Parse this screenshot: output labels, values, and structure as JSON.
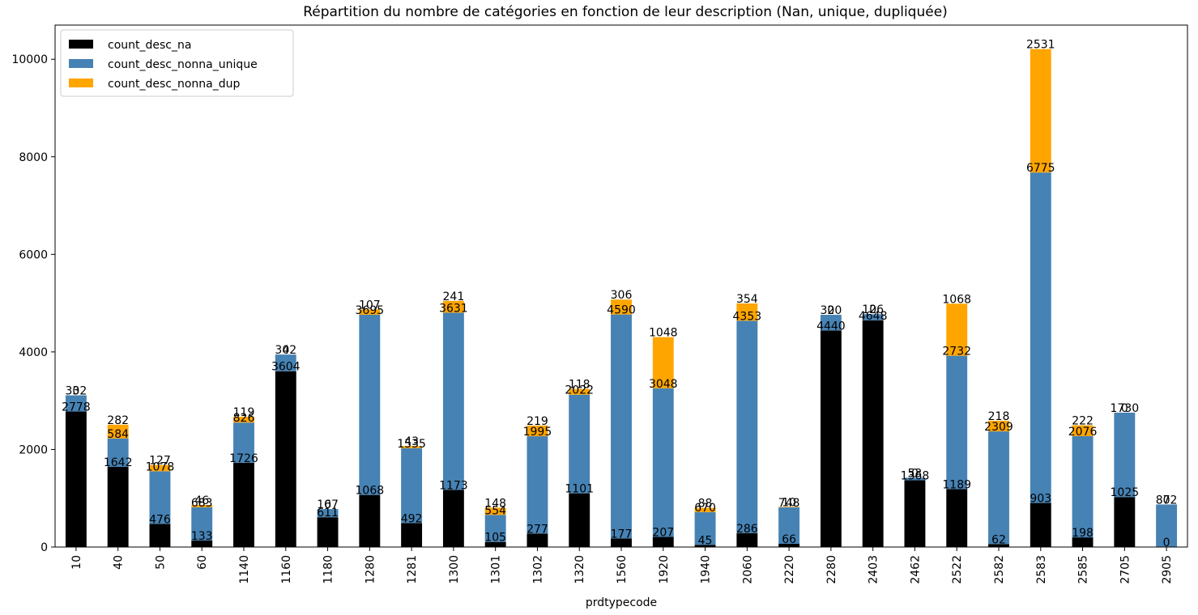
{
  "chart_data": {
    "type": "bar",
    "stacked": true,
    "title": "Répartition du nombre de catégories en fonction de leur description (Nan, unique, dupliquée)",
    "xlabel": "prdtypecode",
    "ylabel": "",
    "ylim": [
      0,
      10700
    ],
    "yticks": [
      0,
      2000,
      4000,
      6000,
      8000,
      10000
    ],
    "legend_position": "top-left",
    "categories": [
      "10",
      "40",
      "50",
      "60",
      "1140",
      "1160",
      "1180",
      "1280",
      "1281",
      "1300",
      "1301",
      "1302",
      "1320",
      "1560",
      "1920",
      "1940",
      "2060",
      "2220",
      "2280",
      "2403",
      "2462",
      "2522",
      "2582",
      "2583",
      "2585",
      "2705",
      "2905"
    ],
    "series": [
      {
        "name": "count_desc_na",
        "color": "#000000",
        "values": [
          2778,
          1642,
          476,
          133,
          1726,
          3604,
          611,
          1068,
          492,
          1173,
          105,
          277,
          1101,
          177,
          207,
          45,
          286,
          66,
          4440,
          4648,
          1368,
          1189,
          62,
          903,
          198,
          1025,
          0
        ]
      },
      {
        "name": "count_desc_nonna_unique",
        "color": "#4682b4",
        "values": [
          332,
          584,
          1078,
          683,
          826,
          342,
          167,
          3695,
          1535,
          3631,
          554,
          1995,
          2022,
          4590,
          3048,
          670,
          4353,
          748,
          320,
          126,
          53,
          2732,
          2309,
          6775,
          2076,
          1730,
          872
        ]
      },
      {
        "name": "count_desc_nonna_dup",
        "color": "#ffa500",
        "values": [
          0,
          282,
          127,
          46,
          119,
          0,
          0,
          107,
          43,
          241,
          148,
          219,
          118,
          306,
          1048,
          88,
          354,
          10,
          0,
          0,
          0,
          1068,
          218,
          2531,
          222,
          0,
          0
        ]
      }
    ]
  }
}
